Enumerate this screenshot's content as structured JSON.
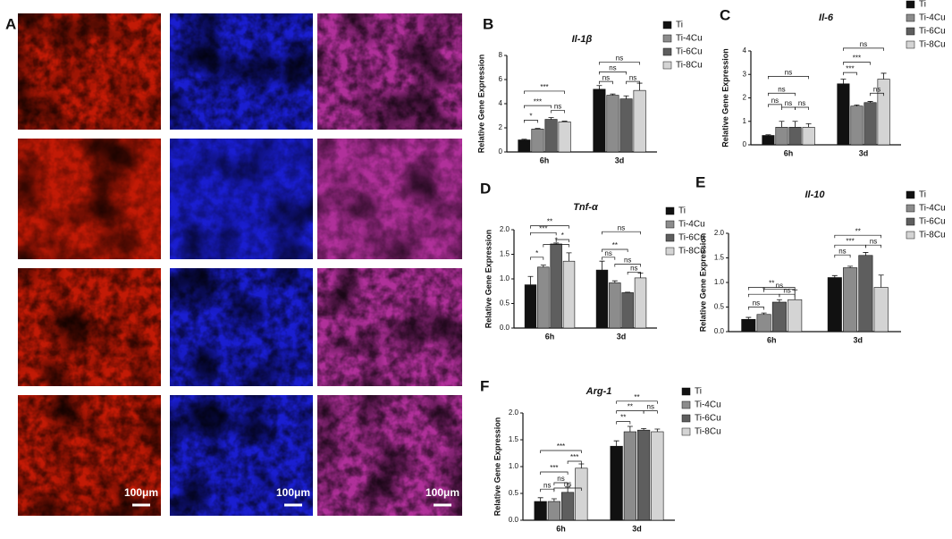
{
  "panel_A": {
    "label": "A",
    "scale_labels": [
      "100μm",
      "100μm",
      "100μm"
    ]
  },
  "chart_data": [
    {
      "type": "bar",
      "panel": "B",
      "title": "Il-1β",
      "ylabel": "Relative Gene Expression",
      "categories": [
        "6h",
        "3d"
      ],
      "legend": "right",
      "ylim": [
        0,
        8
      ],
      "yticks": [
        0,
        2,
        4,
        6,
        8
      ],
      "series": [
        {
          "name": "Ti",
          "color": "#111111",
          "values": [
            1.0,
            5.2
          ],
          "errors": [
            0.05,
            0.3
          ]
        },
        {
          "name": "Ti-4Cu",
          "color": "#8c8c8c",
          "values": [
            1.9,
            4.7
          ],
          "errors": [
            0.05,
            0.1
          ]
        },
        {
          "name": "Ti-6Cu",
          "color": "#5e5e5e",
          "values": [
            2.7,
            4.4
          ],
          "errors": [
            0.15,
            0.25
          ]
        },
        {
          "name": "Ti-8Cu",
          "color": "#d4d4d4",
          "values": [
            2.5,
            5.1
          ],
          "errors": [
            0.05,
            0.6
          ]
        }
      ],
      "annotations": [
        "*",
        "***",
        "***",
        "ns",
        "ns",
        "ns",
        "ns",
        "ns"
      ]
    },
    {
      "type": "bar",
      "panel": "C",
      "title": "Il-6",
      "ylabel": "Relative Gene Expression",
      "categories": [
        "6h",
        "3d"
      ],
      "legend": "right",
      "ylim": [
        0,
        4
      ],
      "yticks": [
        0,
        1,
        2,
        3,
        4
      ],
      "series": [
        {
          "name": "Ti",
          "color": "#111111",
          "values": [
            0.4,
            2.6
          ],
          "errors": [
            0.03,
            0.2
          ]
        },
        {
          "name": "Ti-4Cu",
          "color": "#8c8c8c",
          "values": [
            0.75,
            1.65
          ],
          "errors": [
            0.25,
            0.05
          ]
        },
        {
          "name": "Ti-6Cu",
          "color": "#5e5e5e",
          "values": [
            0.75,
            1.8
          ],
          "errors": [
            0.25,
            0.05
          ]
        },
        {
          "name": "Ti-8Cu",
          "color": "#d4d4d4",
          "values": [
            0.75,
            2.8
          ],
          "errors": [
            0.15,
            0.25
          ]
        }
      ],
      "annotations": [
        "ns",
        "ns",
        "ns",
        "ns",
        "ns",
        "ns",
        "***",
        "***",
        "ns"
      ]
    },
    {
      "type": "bar",
      "panel": "D",
      "title": "Tnf-α",
      "ylabel": "Relative Gene Expression",
      "categories": [
        "6h",
        "3d"
      ],
      "legend": "right",
      "ylim": [
        0,
        2
      ],
      "yticks": [
        {
          "value": 0,
          "label": "0.0"
        },
        0.5,
        {
          "value": 1,
          "label": "1.0"
        },
        1.5,
        {
          "value": 2,
          "label": "2.0"
        }
      ],
      "series": [
        {
          "name": "Ti",
          "color": "#111111",
          "values": [
            0.88,
            1.18
          ],
          "errors": [
            0.17,
            0.18
          ]
        },
        {
          "name": "Ti-4Cu",
          "color": "#8c8c8c",
          "values": [
            1.24,
            0.92
          ],
          "errors": [
            0.04,
            0.04
          ]
        },
        {
          "name": "Ti-6Cu",
          "color": "#5e5e5e",
          "values": [
            1.71,
            0.72
          ],
          "errors": [
            0.02,
            0.01
          ]
        },
        {
          "name": "Ti-8Cu",
          "color": "#d4d4d4",
          "values": [
            1.36,
            1.02
          ],
          "errors": [
            0.17,
            0.1
          ]
        }
      ],
      "annotations": [
        "**",
        "***",
        "*",
        "*",
        "*",
        "ns",
        "**",
        "ns",
        "ns",
        "ns"
      ]
    },
    {
      "type": "bar",
      "panel": "E",
      "title": "Il-10",
      "ylabel": "Relative Gene Expression",
      "categories": [
        "6h",
        "3d"
      ],
      "legend": "right",
      "ylim": [
        0,
        2
      ],
      "yticks": [
        {
          "value": 0,
          "label": "0.0"
        },
        0.5,
        {
          "value": 1,
          "label": "1.0"
        },
        1.5,
        {
          "value": 2,
          "label": "2.0"
        }
      ],
      "series": [
        {
          "name": "Ti",
          "color": "#111111",
          "values": [
            0.25,
            1.1
          ],
          "errors": [
            0.04,
            0.04
          ]
        },
        {
          "name": "Ti-4Cu",
          "color": "#8c8c8c",
          "values": [
            0.35,
            1.3
          ],
          "errors": [
            0.03,
            0.03
          ]
        },
        {
          "name": "Ti-6Cu",
          "color": "#5e5e5e",
          "values": [
            0.6,
            1.55
          ],
          "errors": [
            0.05,
            0.06
          ]
        },
        {
          "name": "Ti-8Cu",
          "color": "#d4d4d4",
          "values": [
            0.65,
            0.9
          ],
          "errors": [
            0.2,
            0.25
          ]
        }
      ],
      "annotations": [
        "**",
        "*",
        "ns",
        "ns",
        "ns",
        "**",
        "***",
        "ns",
        "ns"
      ]
    },
    {
      "type": "bar",
      "panel": "F",
      "title": "Arg-1",
      "ylabel": "Relative Gene Expression",
      "categories": [
        "6h",
        "3d"
      ],
      "legend": "right",
      "ylim": [
        0,
        2
      ],
      "yticks": [
        {
          "value": 0,
          "label": "0.0"
        },
        0.5,
        {
          "value": 1,
          "label": "1.0"
        },
        1.5,
        {
          "value": 2,
          "label": "2.0"
        }
      ],
      "series": [
        {
          "name": "Ti",
          "color": "#111111",
          "values": [
            0.35,
            1.38
          ],
          "errors": [
            0.07,
            0.1
          ]
        },
        {
          "name": "Ti-4Cu",
          "color": "#8c8c8c",
          "values": [
            0.35,
            1.65
          ],
          "errors": [
            0.05,
            0.1
          ]
        },
        {
          "name": "Ti-6Cu",
          "color": "#5e5e5e",
          "values": [
            0.52,
            1.68
          ],
          "errors": [
            0.1,
            0.03
          ]
        },
        {
          "name": "Ti-8Cu",
          "color": "#d4d4d4",
          "values": [
            0.97,
            1.65
          ],
          "errors": [
            0.08,
            0.05
          ]
        }
      ],
      "annotations": [
        "***",
        "***",
        "***",
        "ns",
        "ns",
        "ns",
        "**",
        "**",
        "ns",
        "**"
      ]
    }
  ]
}
